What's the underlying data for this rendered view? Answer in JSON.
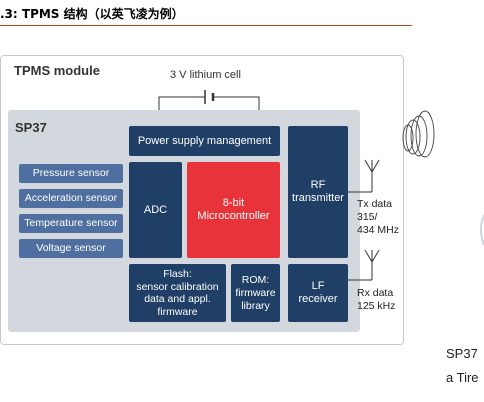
{
  "figure_heading": ".3:  TPMS 结构（以英飞凌为例）",
  "module_title": "TPMS module",
  "chip_label": "SP37",
  "battery_label": "3 V lithium cell",
  "blocks": {
    "power": "Power supply management",
    "adc": "ADC",
    "mcu": "8-bit\nMicrocontroller",
    "rf": "RF\ntransmitter",
    "flash": "Flash:\nsensor calibration\ndata and appl.\nfirmware",
    "rom": "ROM:\nfirmware\nlibrary",
    "lf": "LF\nreceiver"
  },
  "sensors": [
    "Pressure sensor",
    "Acceleration sensor",
    "Temperature sensor",
    "Voltage sensor"
  ],
  "tx_label": "Tx data\n315/\n434 MHz",
  "rx_label": "Rx data\n125 kHz",
  "cut_text_1": "SP37",
  "cut_text_2": "a Tire",
  "colors": {
    "block_navy": "#1f3f66",
    "mcu_red": "#e8333a",
    "sensor_blue": "#4f6fa0",
    "chip_bg": "#d3d8df"
  }
}
